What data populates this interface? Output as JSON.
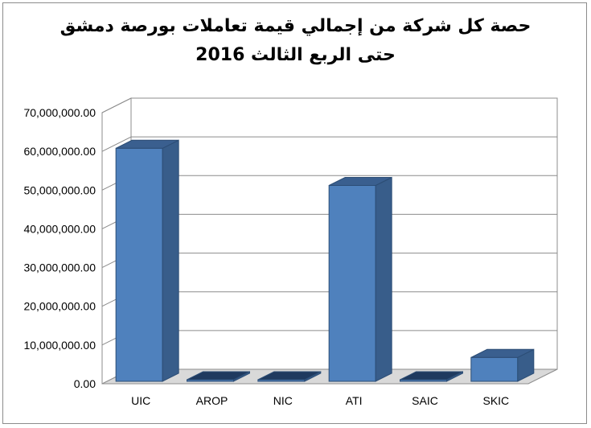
{
  "chart_data": {
    "type": "bar",
    "title": "حصة كل شركة من إجمالي قيمة تعاملات بورصة دمشق",
    "subtitle": "حتى الربع الثالث 2016",
    "categories": [
      "UIC",
      "AROP",
      "NIC",
      "ATI",
      "SAIC",
      "SKIC"
    ],
    "values": [
      60800000,
      400000,
      150000,
      51200000,
      100000,
      6800000
    ],
    "ylim": [
      0,
      70000000
    ],
    "yticks": [
      "0.00",
      "10,000,000.00",
      "20,000,000.00",
      "30,000,000.00",
      "40,000,000.00",
      "50,000,000.00",
      "60,000,000.00",
      "70,000,000.00"
    ],
    "grid": true,
    "legend": "none",
    "colors": {
      "front": "#4f81bd",
      "side": "#385d8a",
      "top": "#3a5f8f",
      "dark": "#1f3a5f",
      "grid": "#8c8c8c",
      "wall": "#d9d9d9"
    }
  }
}
